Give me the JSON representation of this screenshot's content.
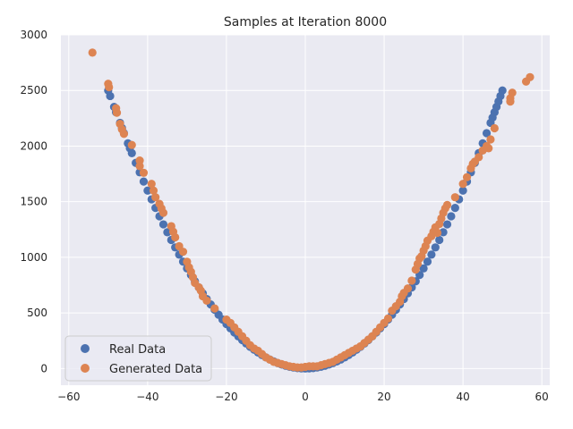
{
  "chart_data": {
    "type": "scatter",
    "title": "Samples at Iteration 8000",
    "xlabel": "",
    "ylabel": "",
    "xlim": [
      -62,
      62
    ],
    "ylim": [
      -150,
      3000
    ],
    "xticks": [
      -60,
      -40,
      -20,
      0,
      20,
      40,
      60
    ],
    "yticks": [
      0,
      500,
      1000,
      1500,
      2000,
      2500,
      3000
    ],
    "grid": true,
    "legend_position": "lower-left",
    "series": [
      {
        "name": "Real Data",
        "color": "#4c72b0",
        "points": [
          [
            -50,
            2500
          ],
          [
            -49.5,
            2450
          ],
          [
            -48.5,
            2352
          ],
          [
            -48,
            2304
          ],
          [
            -47,
            2209
          ],
          [
            -46.5,
            2162
          ],
          [
            -46,
            2116
          ],
          [
            -45,
            2025
          ],
          [
            -44.5,
            1980
          ],
          [
            -44,
            1936
          ],
          [
            -43,
            1849
          ],
          [
            -42,
            1764
          ],
          [
            -41,
            1681
          ],
          [
            -40,
            1600
          ],
          [
            -39,
            1521
          ],
          [
            -38,
            1444
          ],
          [
            -37,
            1369
          ],
          [
            -36,
            1296
          ],
          [
            -35,
            1225
          ],
          [
            -34,
            1156
          ],
          [
            -33,
            1089
          ],
          [
            -32,
            1024
          ],
          [
            -31,
            961
          ],
          [
            -30,
            900
          ],
          [
            -29,
            841
          ],
          [
            -28,
            784
          ],
          [
            -27,
            729
          ],
          [
            -26,
            676
          ],
          [
            -25,
            625
          ],
          [
            -24,
            576
          ],
          [
            -23,
            529
          ],
          [
            -22,
            484
          ],
          [
            -21,
            441
          ],
          [
            -20,
            400
          ],
          [
            -19,
            361
          ],
          [
            -18,
            324
          ],
          [
            -17,
            289
          ],
          [
            -16,
            256
          ],
          [
            -15,
            225
          ],
          [
            -14,
            196
          ],
          [
            -13,
            169
          ],
          [
            -12,
            144
          ],
          [
            -11,
            121
          ],
          [
            -10,
            100
          ],
          [
            -9,
            81
          ],
          [
            -8,
            64
          ],
          [
            -7,
            49
          ],
          [
            -6,
            36
          ],
          [
            -5,
            25
          ],
          [
            -4,
            16
          ],
          [
            -3,
            9
          ],
          [
            -2,
            4
          ],
          [
            -1,
            1
          ],
          [
            0,
            0
          ],
          [
            1,
            1
          ],
          [
            2,
            4
          ],
          [
            3,
            9
          ],
          [
            4,
            16
          ],
          [
            5,
            25
          ],
          [
            6,
            36
          ],
          [
            7,
            49
          ],
          [
            8,
            64
          ],
          [
            9,
            81
          ],
          [
            10,
            100
          ],
          [
            11,
            121
          ],
          [
            12,
            144
          ],
          [
            13,
            169
          ],
          [
            14,
            196
          ],
          [
            15,
            225
          ],
          [
            16,
            256
          ],
          [
            17,
            289
          ],
          [
            18,
            324
          ],
          [
            19,
            361
          ],
          [
            20,
            400
          ],
          [
            21,
            441
          ],
          [
            22,
            484
          ],
          [
            23,
            529
          ],
          [
            24,
            576
          ],
          [
            25,
            625
          ],
          [
            26,
            676
          ],
          [
            27,
            729
          ],
          [
            28,
            784
          ],
          [
            29,
            841
          ],
          [
            30,
            900
          ],
          [
            31,
            961
          ],
          [
            32,
            1024
          ],
          [
            33,
            1089
          ],
          [
            34,
            1156
          ],
          [
            35,
            1225
          ],
          [
            36,
            1296
          ],
          [
            37,
            1369
          ],
          [
            38,
            1444
          ],
          [
            39,
            1521
          ],
          [
            40,
            1600
          ],
          [
            41,
            1681
          ],
          [
            42,
            1764
          ],
          [
            43,
            1849
          ],
          [
            44,
            1936
          ],
          [
            45,
            2025
          ],
          [
            46,
            2116
          ],
          [
            47,
            2209
          ],
          [
            47.5,
            2256
          ],
          [
            48,
            2304
          ],
          [
            48.5,
            2352
          ],
          [
            49,
            2401
          ],
          [
            49.5,
            2450
          ],
          [
            50,
            2500
          ]
        ]
      },
      {
        "name": "Generated Data",
        "color": "#dd8452",
        "points": [
          [
            -54,
            2840
          ],
          [
            -50,
            2560
          ],
          [
            -49.8,
            2530
          ],
          [
            -48,
            2340
          ],
          [
            -47.8,
            2300
          ],
          [
            -47,
            2200
          ],
          [
            -46.5,
            2150
          ],
          [
            -46,
            2110
          ],
          [
            -44,
            2010
          ],
          [
            -42,
            1870
          ],
          [
            -42,
            1820
          ],
          [
            -41,
            1760
          ],
          [
            -39,
            1660
          ],
          [
            -38.5,
            1600
          ],
          [
            -38,
            1540
          ],
          [
            -37,
            1480
          ],
          [
            -36.5,
            1440
          ],
          [
            -36,
            1400
          ],
          [
            -34,
            1280
          ],
          [
            -33.5,
            1230
          ],
          [
            -33,
            1180
          ],
          [
            -32,
            1100
          ],
          [
            -31,
            1050
          ],
          [
            -30,
            960
          ],
          [
            -29.5,
            910
          ],
          [
            -29,
            870
          ],
          [
            -28.5,
            820
          ],
          [
            -28,
            770
          ],
          [
            -27,
            730
          ],
          [
            -26.5,
            700
          ],
          [
            -26,
            650
          ],
          [
            -25,
            610
          ],
          [
            -23,
            540
          ],
          [
            -20,
            440
          ],
          [
            -19,
            410
          ],
          [
            -18,
            370
          ],
          [
            -17,
            330
          ],
          [
            -16,
            290
          ],
          [
            -15,
            250
          ],
          [
            -14,
            210
          ],
          [
            -13,
            180
          ],
          [
            -12,
            160
          ],
          [
            -11,
            130
          ],
          [
            -10,
            100
          ],
          [
            -9,
            80
          ],
          [
            -8,
            60
          ],
          [
            -7,
            50
          ],
          [
            -6,
            40
          ],
          [
            -5,
            30
          ],
          [
            -4,
            20
          ],
          [
            -3,
            15
          ],
          [
            -2,
            10
          ],
          [
            -1,
            10
          ],
          [
            0,
            15
          ],
          [
            1,
            20
          ],
          [
            2,
            20
          ],
          [
            3,
            20
          ],
          [
            4,
            30
          ],
          [
            5,
            40
          ],
          [
            6,
            50
          ],
          [
            7,
            60
          ],
          [
            8,
            80
          ],
          [
            9,
            100
          ],
          [
            10,
            120
          ],
          [
            11,
            140
          ],
          [
            12,
            160
          ],
          [
            13,
            180
          ],
          [
            14,
            200
          ],
          [
            15,
            230
          ],
          [
            16,
            260
          ],
          [
            17,
            290
          ],
          [
            18,
            330
          ],
          [
            19,
            370
          ],
          [
            20,
            410
          ],
          [
            21,
            450
          ],
          [
            22,
            520
          ],
          [
            23,
            560
          ],
          [
            24,
            600
          ],
          [
            24.5,
            650
          ],
          [
            25,
            680
          ],
          [
            26,
            720
          ],
          [
            27,
            790
          ],
          [
            28,
            890
          ],
          [
            28.5,
            940
          ],
          [
            29,
            990
          ],
          [
            29.5,
            1010
          ],
          [
            30,
            1060
          ],
          [
            30.5,
            1100
          ],
          [
            31,
            1150
          ],
          [
            32,
            1190
          ],
          [
            32.5,
            1230
          ],
          [
            33,
            1270
          ],
          [
            33.5,
            1220
          ],
          [
            34,
            1300
          ],
          [
            34.5,
            1350
          ],
          [
            35,
            1400
          ],
          [
            35.5,
            1440
          ],
          [
            36,
            1470
          ],
          [
            38,
            1540
          ],
          [
            40,
            1660
          ],
          [
            41,
            1720
          ],
          [
            42,
            1800
          ],
          [
            42.5,
            1840
          ],
          [
            43,
            1860
          ],
          [
            44,
            1900
          ],
          [
            45,
            1960
          ],
          [
            46,
            2000
          ],
          [
            46.5,
            1980
          ],
          [
            47,
            2060
          ],
          [
            48,
            2160
          ],
          [
            52,
            2400
          ],
          [
            52,
            2430
          ],
          [
            52.5,
            2480
          ],
          [
            56,
            2580
          ],
          [
            57,
            2620
          ]
        ]
      }
    ]
  }
}
